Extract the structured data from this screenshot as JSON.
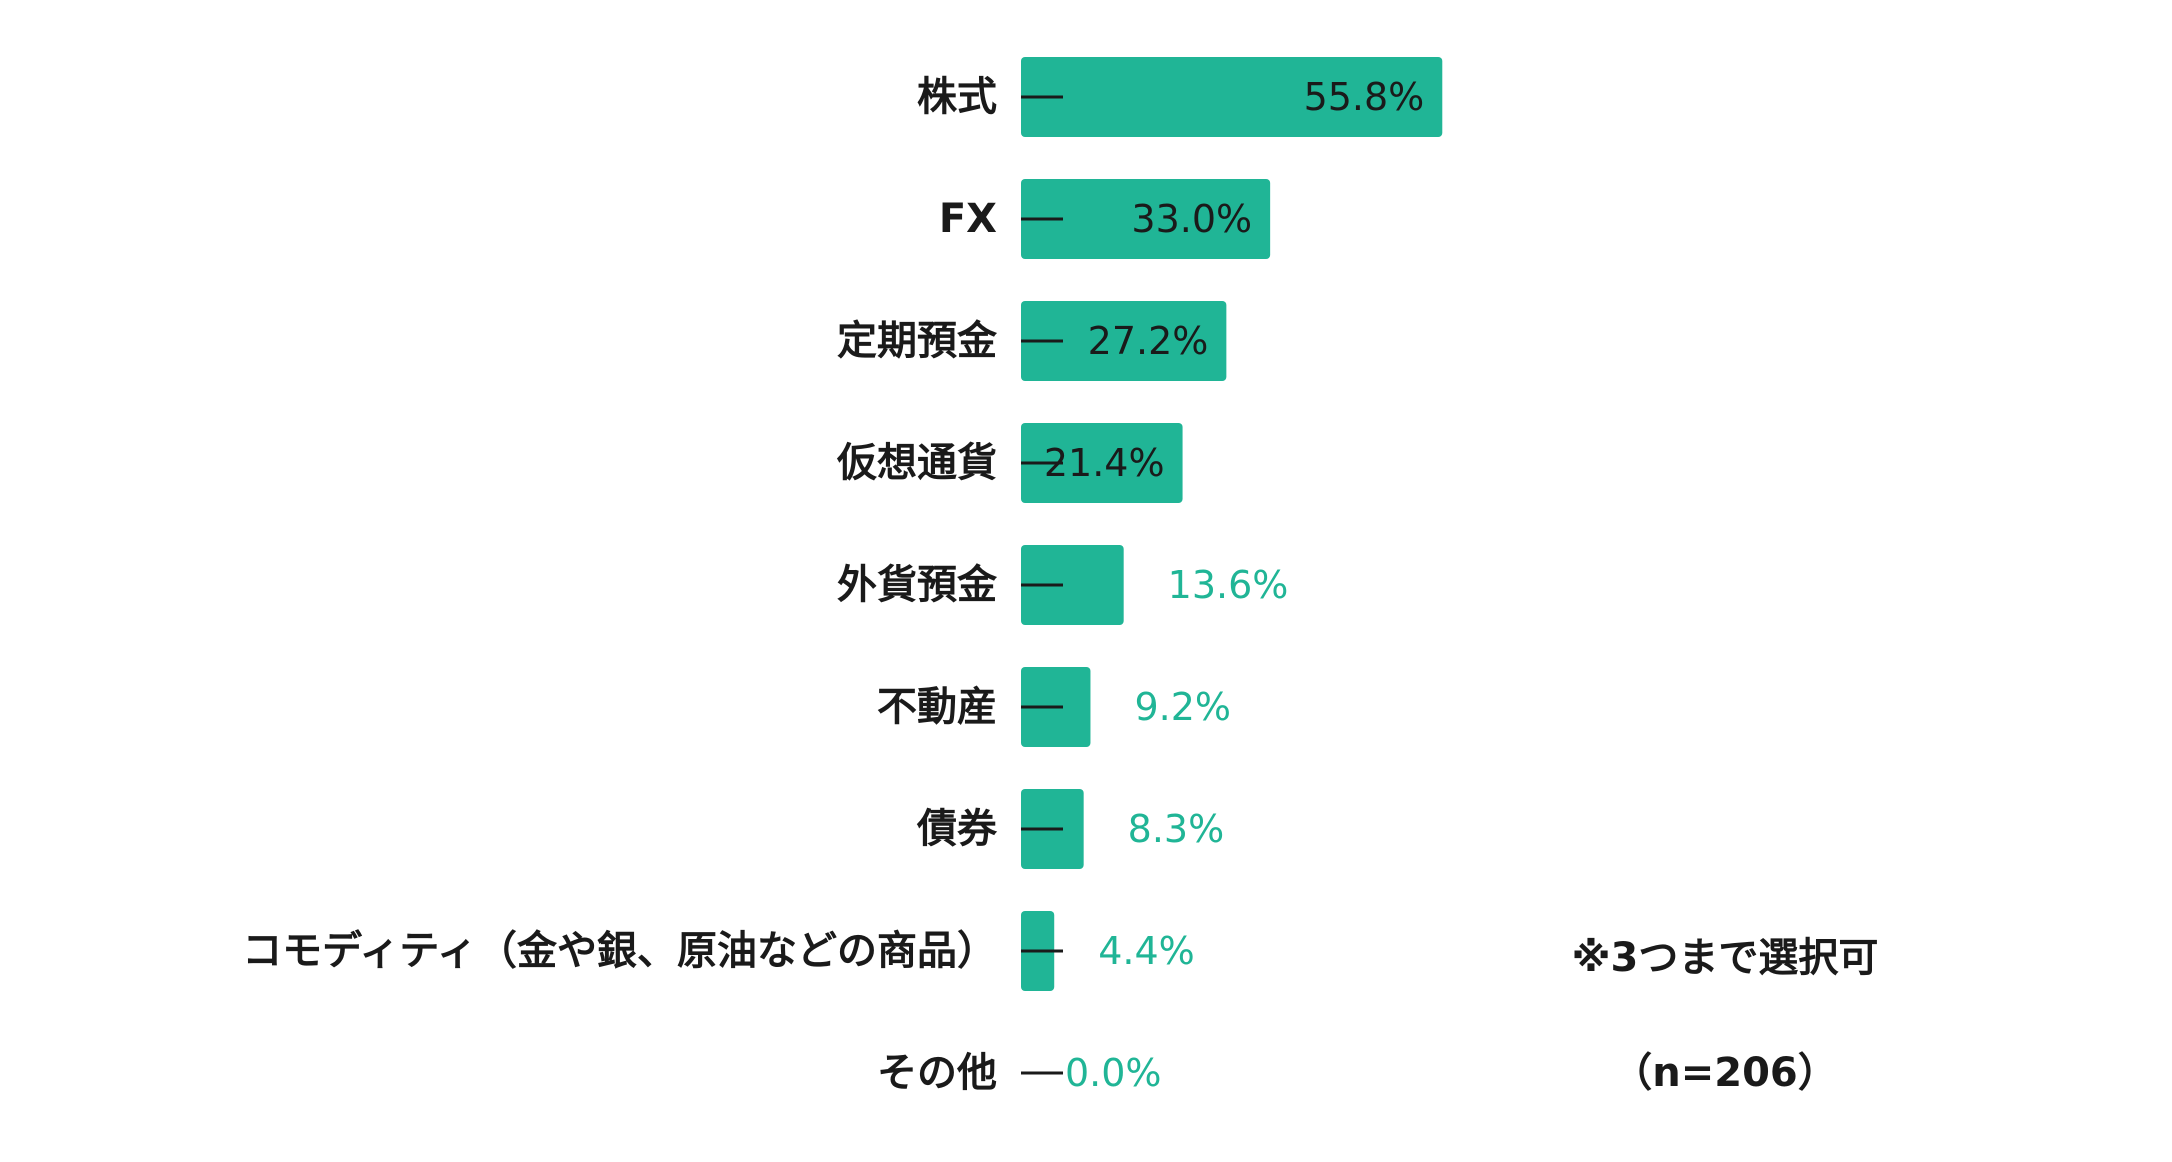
{
  "chart_data": {
    "type": "bar",
    "orientation": "horizontal",
    "categories": [
      "株式",
      "FX",
      "定期預金",
      "仮想通貨",
      "外貨預金",
      "不動産",
      "債券",
      "コモディティ（金や銀、原油などの商品）",
      "その他"
    ],
    "values": [
      55.8,
      33.0,
      27.2,
      21.4,
      13.6,
      9.2,
      8.3,
      4.4,
      0.0
    ],
    "value_labels": [
      "55.8%",
      "33.0%",
      "27.2%",
      "21.4%",
      "13.6%",
      "9.2%",
      "8.3%",
      "4.4%",
      "0.0%"
    ],
    "xlim": [
      0,
      100
    ],
    "grid": false,
    "legend": "none",
    "title": "",
    "xlabel": "",
    "ylabel": "",
    "colors": {
      "bar": "#20b596",
      "outside_label": "#20b596",
      "inside_label": "#1a1a1a",
      "category_label": "#1a1a1a",
      "tick": "#1a1a1a"
    }
  },
  "notes": {
    "choice_limit": "※3つまで選択可",
    "sample_size": "（n=206）"
  }
}
